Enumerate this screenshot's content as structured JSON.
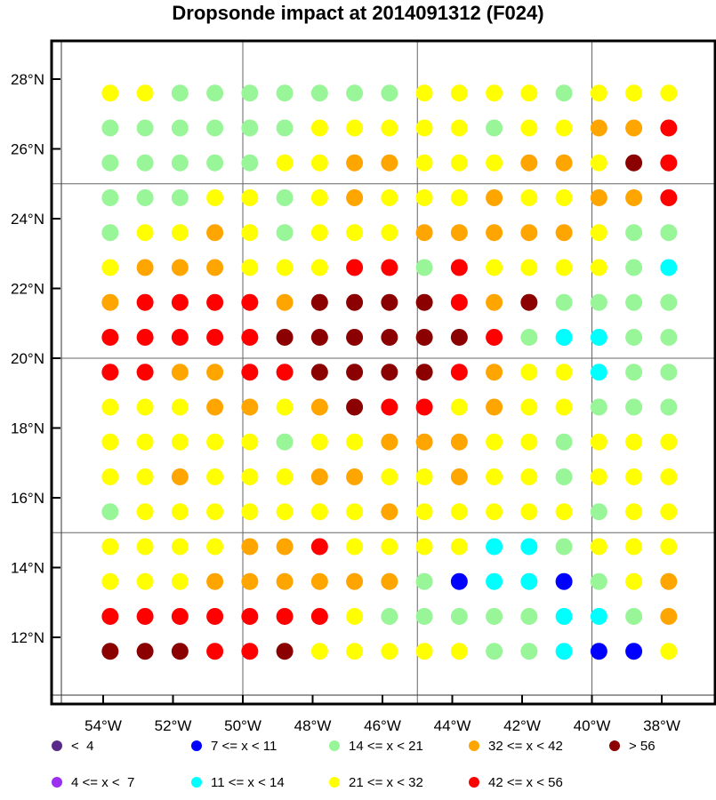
{
  "chart_data": {
    "type": "scatter",
    "title": "Dropsonde impact at 2014091312 (F024)",
    "xlabel": "",
    "ylabel": "",
    "xlim": [
      -55.5,
      -36.5
    ],
    "ylim": [
      10.2,
      29.0
    ],
    "grid_lines_lon": [
      -50,
      -45,
      -40
    ],
    "grid_lines_lat": [
      15,
      20,
      25
    ],
    "x_ticks": [
      {
        "value": -54,
        "label": "54°W"
      },
      {
        "value": -52,
        "label": "52°W"
      },
      {
        "value": -50,
        "label": "50°W"
      },
      {
        "value": -48,
        "label": "48°W"
      },
      {
        "value": -46,
        "label": "46°W"
      },
      {
        "value": -44,
        "label": "44°W"
      },
      {
        "value": -42,
        "label": "42°W"
      },
      {
        "value": -40,
        "label": "40°W"
      },
      {
        "value": -38,
        "label": "38°W"
      }
    ],
    "y_ticks": [
      {
        "value": 12,
        "label": "12°N"
      },
      {
        "value": 14,
        "label": "14°N"
      },
      {
        "value": 16,
        "label": "16°N"
      },
      {
        "value": 18,
        "label": "18°N"
      },
      {
        "value": 20,
        "label": "20°N"
      },
      {
        "value": 22,
        "label": "22°N"
      },
      {
        "value": 24,
        "label": "24°N"
      },
      {
        "value": 26,
        "label": "26°N"
      },
      {
        "value": 28,
        "label": "28°N"
      }
    ],
    "lons": [
      -53.8,
      -52.8,
      -51.8,
      -50.8,
      -49.8,
      -48.8,
      -47.8,
      -46.8,
      -45.8,
      -44.8,
      -43.8,
      -42.8,
      -41.8,
      -40.8,
      -39.8,
      -38.8,
      -37.8
    ],
    "lats": [
      27.6,
      26.6,
      25.6,
      24.6,
      23.6,
      22.6,
      21.6,
      20.6,
      19.6,
      18.6,
      17.6,
      16.6,
      15.6,
      14.6,
      13.6,
      12.6,
      11.6
    ],
    "class_grid": [
      "YYGGGGGGGYYYYGYYY",
      "GGGGGGYYYYYGYYOOR",
      "GGGGGYYOOYYYOOYDR",
      "GGGYYGYOYYYOYYOOR",
      "GYYOYGYYYOOOOOYGG",
      "YOOOYYYRRGRYYYYGC",
      "ORRRROMDDDRODGGGG",
      "RRRRRDDDDDDRGCCGG",
      "RRONRRDDDDROYYCGG",
      "YYYOOYODRRYOYYGGG",
      "YYYYYGYYOOOYYGYYY",
      "YYOYYYOOYYOYYGYYY",
      "GYYYYYYYOYYYYYGYY",
      "YYYYOORYYYYCCGYYY",
      "YYYOOOOOOGBCCBGYO",
      "RRRRRRRYGGGGGCCGO",
      "DDDRRDYYYYYGGCBBY"
    ],
    "legend": [
      {
        "label": "<  4",
        "key": "lt4"
      },
      {
        "label": "4 <= x <  7",
        "key": "4to7"
      },
      {
        "label": "7 <= x < 11",
        "key": "7to11"
      },
      {
        "label": "11 <= x < 14",
        "key": "11to14"
      },
      {
        "label": "14 <= x < 21",
        "key": "14to21"
      },
      {
        "label": "21 <= x < 32",
        "key": "21to32"
      },
      {
        "label": "32 <= x < 42",
        "key": "32to42"
      },
      {
        "label": "42 <= x < 56",
        "key": "42to56"
      },
      {
        "label": "> 56",
        "key": "gt56"
      }
    ],
    "colors": {
      "lt4": "#5a2a8a",
      "4to7": "#9b30f0",
      "7to11": "#0000ff",
      "11to14": "#00ffff",
      "14to21": "#98f598",
      "21to32": "#ffff00",
      "32to42": "#ffa500",
      "42to56": "#ff0000",
      "gt56": "#8b0000"
    },
    "class_code_map": {
      "B": "7to11",
      "C": "11to14",
      "G": "14to21",
      "Y": "21to32",
      "O": "32to42",
      "R": "42to56",
      "D": "gt56",
      "M": "gt56",
      "N": "32to42"
    }
  }
}
